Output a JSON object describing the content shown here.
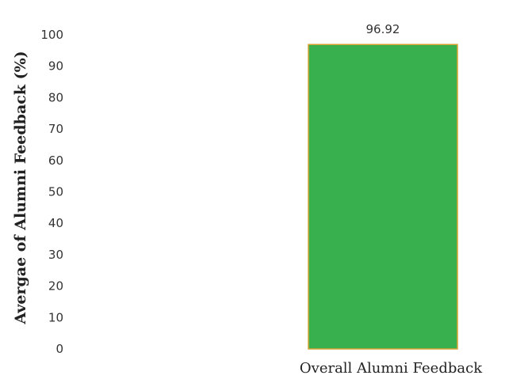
{
  "chart_data": {
    "type": "bar",
    "categories": [
      "Overall Alumni Feedback"
    ],
    "values": [
      96.92
    ],
    "data_labels": [
      "96.92"
    ],
    "title": "",
    "xlabel": "",
    "ylabel": "Avergae of Alumni Feedback (%)",
    "ylim": [
      0,
      100
    ],
    "yticks": [
      "0",
      "10",
      "20",
      "30",
      "40",
      "50",
      "60",
      "70",
      "80",
      "90",
      "100"
    ],
    "grid": false,
    "legend": "none",
    "colors": {
      "bar": "#38b04e",
      "bar_edge": "#d9a334"
    }
  }
}
